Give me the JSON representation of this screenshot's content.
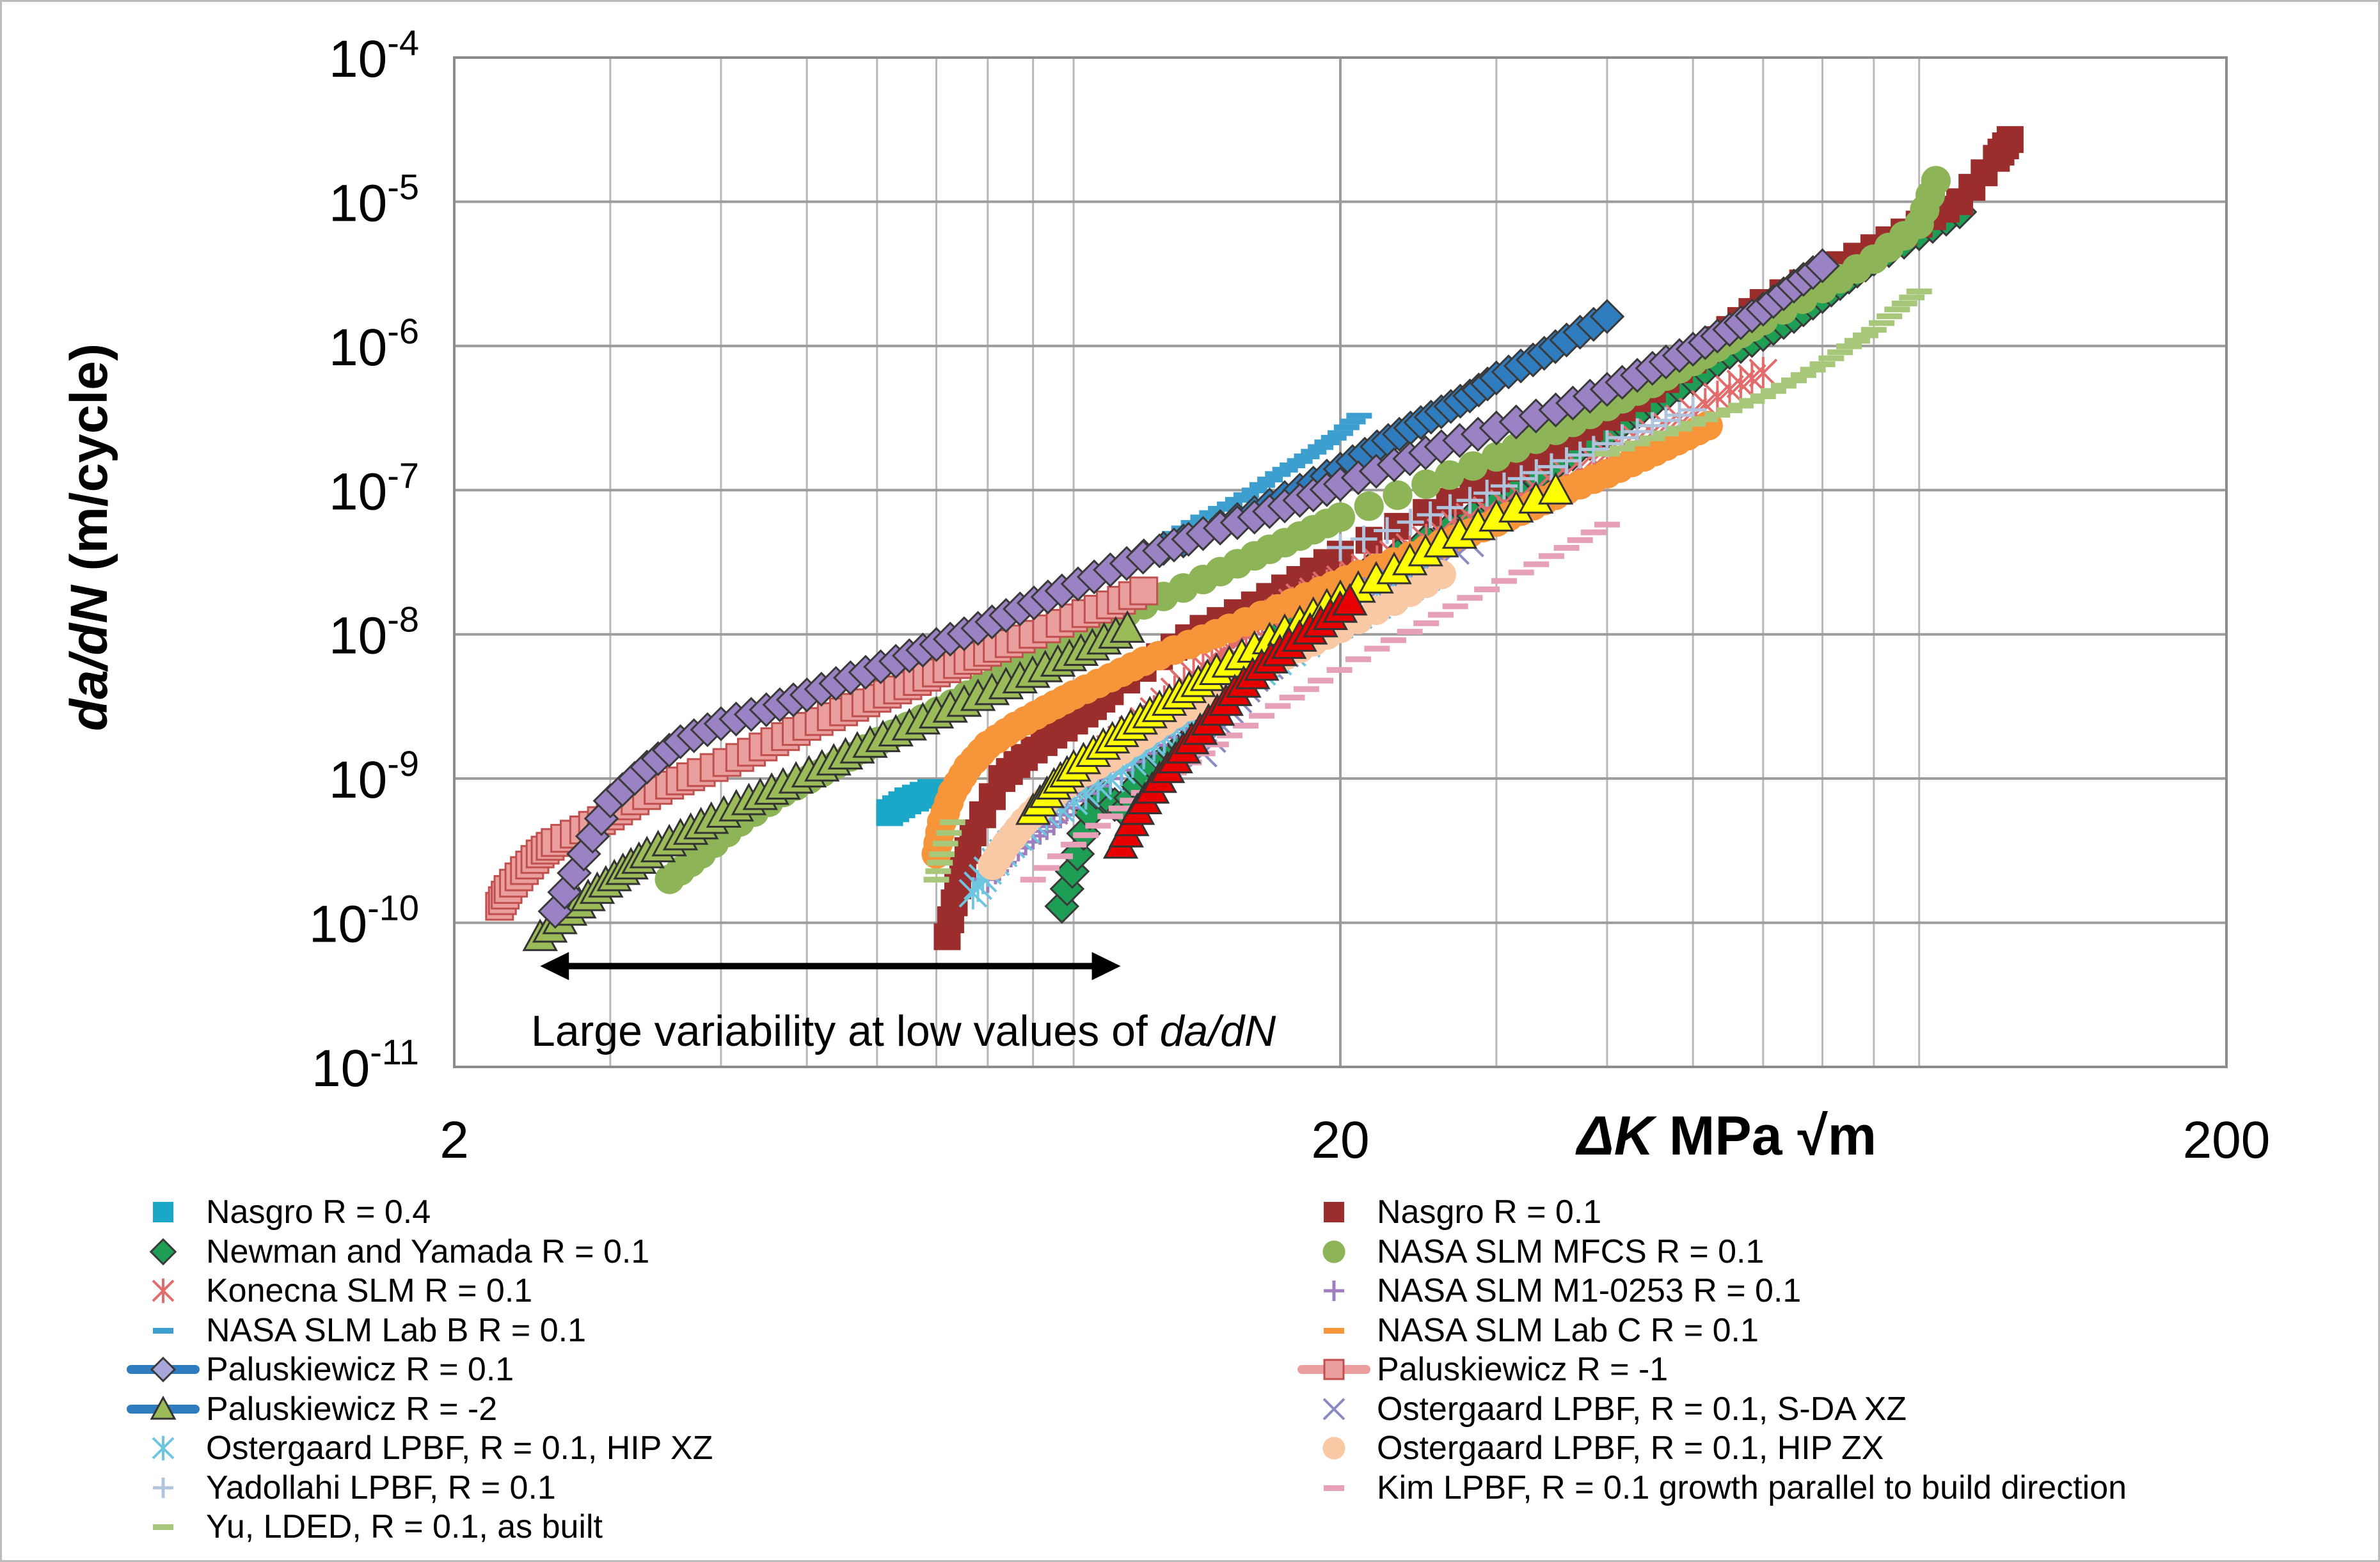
{
  "chart_data": {
    "type": "scatter",
    "x_scale": "log",
    "y_scale": "log",
    "xlim": [
      2,
      200
    ],
    "ylim": [
      1e-11,
      0.0001
    ],
    "x_tick_labels": [
      "2",
      "20",
      "200"
    ],
    "y_tick_labels": [
      {
        "base": "10",
        "exp": "-11"
      },
      {
        "base": "10",
        "exp": "-10"
      },
      {
        "base": "10",
        "exp": "-9"
      },
      {
        "base": "10",
        "exp": "-8"
      },
      {
        "base": "10",
        "exp": "-7"
      },
      {
        "base": "10",
        "exp": "-6"
      },
      {
        "base": "10",
        "exp": "-5"
      },
      {
        "base": "10",
        "exp": "-4"
      }
    ],
    "xlabel": {
      "symbol": "ΔK",
      "unit": " MPa √m"
    },
    "ylabel": {
      "italic": "da/dN",
      "rest": " (m/cycle)"
    },
    "grid": true,
    "annotation": {
      "text": "Large variability at low values of ",
      "italic": "da/dN",
      "arrow_x": [
        2.5,
        11.3
      ],
      "arrow_y": 5e-11
    },
    "legend_position": "bottom",
    "series": [
      {
        "name": "Nasgro R = 0.4",
        "marker": "square",
        "color": "#1ba8c8",
        "x": [
          6.2,
          6.5,
          6.9
        ],
        "y": [
          5.8e-10,
          7e-10,
          8e-10
        ]
      },
      {
        "name": "Newman and Yamada R = 0.1",
        "marker": "diamond",
        "color": "#1e9e55",
        "x": [
          9.7,
          10.1,
          10.6,
          11.4,
          12.0,
          13.0,
          14.0,
          15.0,
          16.5,
          18.0,
          20,
          25,
          30,
          35,
          40,
          45,
          50,
          55,
          60,
          65,
          70,
          75,
          80,
          90,
          100
        ],
        "y": [
          1.3e-10,
          3e-10,
          8e-10,
          6e-10,
          1.1e-09,
          1.5e-09,
          2.2e-09,
          4e-09,
          8e-09,
          1.5e-08,
          2.2e-08,
          4.5e-08,
          8e-08,
          1.5e-07,
          2.5e-07,
          4e-07,
          6e-07,
          9e-07,
          1.2e-06,
          1.6e-06,
          2.2e-06,
          3e-06,
          4e-06,
          6e-06,
          8.5e-06
        ]
      },
      {
        "name": "Nasgro R = 0.1",
        "marker": "square",
        "color": "#9b2d2d",
        "x": [
          7.2,
          7.4,
          7.7,
          8.3,
          8.8,
          9.5,
          10.3,
          11.0,
          12.5,
          14,
          16,
          18,
          20,
          25,
          30,
          35,
          40,
          45,
          50,
          55,
          60,
          70,
          80,
          90,
          100,
          110,
          114
        ],
        "y": [
          8e-11,
          1.8e-10,
          4.2e-10,
          1e-09,
          1.4e-09,
          2e-09,
          2.8e-09,
          4e-09,
          7e-09,
          1.1e-08,
          1.6e-08,
          2.4e-08,
          3.6e-08,
          7e-08,
          1.2e-07,
          2e-07,
          3.2e-07,
          5e-07,
          8e-07,
          1.3e-06,
          2e-06,
          3.2e-06,
          4.8e-06,
          7e-06,
          1e-05,
          2e-05,
          2.7e-05
        ]
      },
      {
        "name": "NASA SLM MFCS R = 0.1",
        "marker": "circle",
        "color": "#8db456",
        "x": [
          3.5,
          3.8,
          4.2,
          4.7,
          5.2,
          5.8,
          6.5,
          7.3,
          8.2,
          9.2,
          10.5,
          12,
          14,
          16,
          18,
          20,
          25,
          30,
          35,
          40,
          45,
          50,
          55,
          60,
          70,
          80,
          90,
          94
        ],
        "y": [
          2e-10,
          3e-10,
          5e-10,
          8e-10,
          1.1e-09,
          1.6e-09,
          2.3e-09,
          3.3e-09,
          5e-09,
          8e-09,
          1.1e-08,
          1.6e-08,
          2.4e-08,
          3.5e-08,
          4.8e-08,
          6.5e-08,
          1.1e-07,
          1.7e-07,
          2.6e-07,
          3.8e-07,
          5.5e-07,
          7.8e-07,
          1.1e-06,
          1.5e-06,
          2.5e-06,
          4e-06,
          7e-06,
          1.4e-05
        ]
      },
      {
        "name": "Konecna SLM R = 0.1",
        "marker": "star",
        "color": "#e26b6b",
        "x": [
          9.5,
          10.2,
          11,
          12,
          13,
          14,
          15,
          16,
          17,
          18,
          20,
          22,
          25,
          28,
          32,
          36,
          40,
          45,
          50,
          55,
          60
        ],
        "y": [
          6e-10,
          1e-09,
          1.6e-09,
          2.5e-09,
          4e-09,
          6e-09,
          8e-09,
          1.1e-08,
          1.4e-08,
          1.8e-08,
          2.4e-08,
          3.2e-08,
          4.5e-08,
          6.5e-08,
          9e-08,
          1.3e-07,
          1.8e-07,
          2.5e-07,
          3.5e-07,
          5e-07,
          6.5e-07
        ]
      },
      {
        "name": "NASA SLM M1-0253 R = 0.1",
        "marker": "plus",
        "color": "#a07cc0",
        "x": [
          8,
          8.5,
          9,
          9.5,
          10,
          11,
          12,
          13,
          14,
          15,
          16,
          18,
          20
        ],
        "y": [
          2e-10,
          3e-10,
          4e-10,
          5e-10,
          7e-10,
          1e-09,
          1.5e-09,
          2.2e-09,
          3e-09,
          4.5e-09,
          6e-09,
          9e-09,
          1.3e-08
        ]
      },
      {
        "name": "NASA SLM Lab B R = 0.1",
        "marker": "dash",
        "color": "#3d9fcf",
        "x": [
          13,
          14,
          15,
          16,
          17,
          18,
          19,
          20,
          21
        ],
        "y": [
          5e-08,
          6.5e-08,
          8e-08,
          1e-07,
          1.3e-07,
          1.6e-07,
          2e-07,
          2.5e-07,
          3.3e-07
        ]
      },
      {
        "name": "NASA SLM Lab C R = 0.1",
        "marker": "circle",
        "color": "#f7953a",
        "x": [
          7.0,
          7.1,
          7.3,
          7.6,
          8.0,
          8.6,
          9.3,
          10,
          11,
          12,
          13.5,
          15,
          17,
          19,
          21,
          24,
          27,
          30,
          33,
          36,
          40,
          44,
          48,
          52
        ],
        "y": [
          3e-10,
          5e-10,
          8e-10,
          1.2e-09,
          1.7e-09,
          2.3e-09,
          3e-09,
          3.8e-09,
          5e-09,
          6.5e-09,
          8.5e-09,
          1.1e-08,
          1.5e-08,
          2e-08,
          2.6e-08,
          3.5e-08,
          4.6e-08,
          6e-08,
          7.8e-08,
          1e-07,
          1.3e-07,
          1.7e-07,
          2.2e-07,
          2.8e-07
        ]
      },
      {
        "name": "Paluskiewicz R = 0.1",
        "marker": "diamond",
        "color": "#2f7cbf",
        "x": [
          12,
          14,
          16,
          18,
          20,
          22,
          24,
          26,
          28,
          30,
          33,
          36,
          40
        ],
        "y": [
          3.5e-08,
          5e-08,
          7e-08,
          1e-07,
          1.4e-07,
          2e-07,
          2.7e-07,
          3.5e-07,
          4.5e-07,
          6e-07,
          8e-07,
          1.1e-06,
          1.6e-06
        ]
      },
      {
        "name": "Paluskiewicz R = -1",
        "marker": "square",
        "color": "#eb9e9e",
        "x": [
          2.25,
          2.3,
          2.4,
          2.5,
          2.6,
          2.8,
          3.0,
          3.2,
          3.5,
          3.8,
          4.2,
          4.6,
          5.0,
          5.5,
          6.0,
          6.5,
          7.0,
          7.6,
          8.2,
          9.0,
          10,
          11,
          12
        ],
        "y": [
          1.3e-10,
          1.7e-10,
          2.3e-10,
          3e-10,
          3.6e-10,
          4.4e-10,
          5.5e-10,
          7e-10,
          9e-10,
          1.1e-09,
          1.4e-09,
          1.8e-09,
          2.3e-09,
          2.9e-09,
          3.6e-09,
          4.4e-09,
          5.4e-09,
          6.6e-09,
          8e-09,
          1e-08,
          1.3e-08,
          1.6e-08,
          2e-08
        ]
      },
      {
        "name": "Paluskiewicz R = -2",
        "marker": "triangle",
        "color": "#9bbb59",
        "x": [
          2.5,
          2.7,
          2.9,
          3.1,
          3.3,
          3.6,
          3.9,
          4.3,
          4.7,
          5.2,
          5.7,
          6.3,
          7.0,
          7.8,
          8.7,
          9.6,
          10.5,
          11.5
        ],
        "y": [
          8e-11,
          1.2e-10,
          1.7e-10,
          2.3e-10,
          3e-10,
          4e-10,
          5.2e-10,
          7e-10,
          9e-10,
          1.2e-09,
          1.6e-09,
          2.1e-09,
          2.8e-09,
          3.7e-09,
          4.9e-09,
          6.4e-09,
          8.3e-09,
          1.1e-08
        ]
      },
      {
        "name": "Ostergaard LPBF, R = 0.1, S-DA XZ",
        "marker": "x",
        "color": "#8a8ac4",
        "x": [
          14,
          15,
          16,
          18,
          20,
          22,
          25,
          28
        ],
        "y": [
          1.5e-09,
          3e-09,
          5e-09,
          9e-09,
          1.4e-08,
          2e-08,
          3e-08,
          4.3e-08
        ]
      },
      {
        "name": "Ostergaard LPBF, R = 0.1, HIP XZ",
        "marker": "star",
        "color": "#6ec5e0",
        "x": [
          7.7,
          8.0,
          8.5,
          9.0,
          10,
          11,
          12,
          13,
          14,
          15,
          17,
          19,
          22,
          25
        ],
        "y": [
          1.6e-10,
          2.3e-10,
          3.5e-10,
          5e-10,
          7e-10,
          1e-09,
          1.5e-09,
          2.2e-09,
          3e-09,
          4e-09,
          6.5e-09,
          1e-08,
          1.6e-08,
          2.5e-08
        ]
      },
      {
        "name": "Ostergaard LPBF, R = 0.1, HIP ZX",
        "marker": "circle",
        "color": "#f9c8a5",
        "x": [
          8.1,
          8.4,
          8.8,
          9.3,
          10,
          11,
          12,
          13,
          14.5,
          16,
          18,
          20,
          23,
          26
        ],
        "y": [
          2.5e-10,
          3.5e-10,
          5e-10,
          7e-10,
          1e-09,
          1.4e-09,
          2e-09,
          2.8e-09,
          4e-09,
          5.6e-09,
          8e-09,
          1.1e-08,
          1.7e-08,
          2.6e-08
        ]
      },
      {
        "name": "Yadollahi LPBF, R = 0.1",
        "marker": "plus",
        "color": "#b0c4de",
        "x": [
          20,
          24,
          28,
          32,
          36,
          40,
          45,
          50
        ],
        "y": [
          4e-08,
          6e-08,
          8.5e-08,
          1.2e-07,
          1.6e-07,
          2.1e-07,
          2.8e-07,
          3.6e-07
        ]
      },
      {
        "name": "Kim LPBF, R = 0.1 growth parallel to build direction",
        "marker": "dash",
        "color": "#e6a0b8",
        "x": [
          9,
          10,
          11,
          12,
          13.5,
          15,
          17,
          19,
          22,
          25,
          28,
          32,
          36,
          40
        ],
        "y": [
          2e-10,
          3.5e-10,
          5.5e-10,
          8e-10,
          1.3e-09,
          2e-09,
          3.2e-09,
          4.8e-09,
          8e-09,
          1.2e-08,
          1.8e-08,
          2.7e-08,
          4e-08,
          5.8e-08
        ]
      },
      {
        "name": "Yu, LDED, R = 0.1, as built",
        "marker": "dash",
        "color": "#a7c77a",
        "x": [
          7.0,
          7.1,
          7.3,
          40,
          45,
          50,
          55,
          60,
          65,
          70,
          75,
          80,
          85,
          90
        ],
        "y": [
          2e-10,
          3e-10,
          5e-10,
          1.8e-07,
          2.3e-07,
          2.9e-07,
          3.6e-07,
          4.5e-07,
          5.8e-07,
          7.5e-07,
          1e-06,
          1.3e-06,
          1.8e-06,
          2.4e-06
        ]
      },
      {
        "name": "",
        "marker": "triangle",
        "color": "#ffff00",
        "x": [
          9.0,
          9.5,
          10.0,
          10.8,
          11.6,
          12.5,
          13.5,
          14.5,
          16,
          18,
          20,
          23,
          26,
          30,
          35
        ],
        "y": [
          6e-10,
          9e-10,
          1.2e-09,
          1.7e-09,
          2.3e-09,
          3.1e-09,
          4.2e-09,
          5.6e-09,
          8e-09,
          1.2e-08,
          1.8e-08,
          2.8e-08,
          4.3e-08,
          6.5e-08,
          1e-07
        ]
      },
      {
        "name": "",
        "marker": "triangle",
        "color": "#e60000",
        "x": [
          11.3,
          11.8,
          12.5,
          13.3,
          14.2,
          15.2,
          16.3,
          17.5,
          19,
          20.5
        ],
        "y": [
          3.5e-10,
          6e-10,
          1e-09,
          1.6e-09,
          2.5e-09,
          4e-09,
          6e-09,
          8.5e-09,
          1.2e-08,
          1.7e-08
        ]
      },
      {
        "name": "",
        "marker": "diamond",
        "color": "#9b82c4",
        "x": [
          2.6,
          2.8,
          3.0,
          3.3,
          3.6,
          4.0,
          4.5,
          5.0,
          5.6,
          6.3,
          7.0,
          7.8,
          8.7,
          9.7,
          11,
          12.5,
          14,
          16,
          18,
          20,
          23,
          26,
          30,
          35,
          40,
          45,
          50,
          55,
          60,
          65,
          70
        ],
        "y": [
          1.2e-10,
          3e-10,
          7e-10,
          1.2e-09,
          1.8e-09,
          2.4e-09,
          3e-09,
          3.8e-09,
          5e-09,
          6.5e-09,
          8.5e-09,
          1.1e-08,
          1.5e-08,
          2e-08,
          2.8e-08,
          3.8e-08,
          5e-08,
          6.5e-08,
          8.5e-08,
          1.1e-07,
          1.5e-07,
          2e-07,
          2.7e-07,
          3.6e-07,
          5e-07,
          7e-07,
          9.5e-07,
          1.3e-06,
          1.8e-06,
          2.6e-06,
          3.6e-06
        ]
      }
    ]
  },
  "legend": {
    "left": [
      {
        "label": "Nasgro R = 0.4",
        "marker": "square",
        "color": "#1ba8c8"
      },
      {
        "label": "Newman and Yamada R = 0.1",
        "marker": "diamond",
        "color": "#1e9e55"
      },
      {
        "label": "Konecna SLM R = 0.1",
        "marker": "star",
        "color": "#e26b6b"
      },
      {
        "label": "NASA SLM Lab B R = 0.1",
        "marker": "dash",
        "color": "#3d9fcf"
      },
      {
        "label": "Paluskiewicz R = 0.1",
        "marker": "line-diamond",
        "color": "#2f7cbf"
      },
      {
        "label": "Paluskiewicz R = -2",
        "marker": "line-triangle",
        "color": "#2f7cbf"
      },
      {
        "label": "Ostergaard LPBF, R = 0.1, HIP XZ",
        "marker": "star",
        "color": "#6ec5e0"
      },
      {
        "label": "Yadollahi LPBF, R = 0.1",
        "marker": "plus",
        "color": "#b0c4de"
      },
      {
        "label": "Yu, LDED, R = 0.1, as built",
        "marker": "dash",
        "color": "#a7c77a"
      }
    ],
    "right": [
      {
        "label": "Nasgro R = 0.1",
        "marker": "square",
        "color": "#9b2d2d"
      },
      {
        "label": "NASA SLM MFCS R = 0.1",
        "marker": "circle",
        "color": "#8db456"
      },
      {
        "label": "NASA SLM M1-0253 R = 0.1",
        "marker": "plus",
        "color": "#a07cc0"
      },
      {
        "label": "NASA SLM Lab C R = 0.1",
        "marker": "dash",
        "color": "#f7953a"
      },
      {
        "label": "Paluskiewicz R = -1",
        "marker": "line-square",
        "color": "#eb9e9e"
      },
      {
        "label": "Ostergaard LPBF, R = 0.1, S-DA XZ",
        "marker": "x",
        "color": "#8a8ac4"
      },
      {
        "label": "Ostergaard LPBF, R = 0.1, HIP ZX",
        "marker": "circle",
        "color": "#f9c8a5"
      },
      {
        "label": "Kim LPBF, R = 0.1 growth parallel to build direction",
        "marker": "dash",
        "color": "#e6a0b8"
      }
    ]
  }
}
